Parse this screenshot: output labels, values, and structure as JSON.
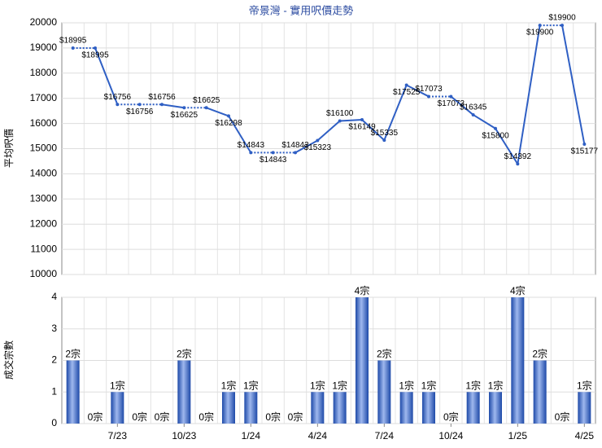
{
  "chart_data": [
    {
      "type": "line",
      "title": "帝景灣 - 實用呎價走勢",
      "y_label": "平均呎價",
      "color": "#2f5fc4",
      "values": [
        18995,
        18995,
        16756,
        16756,
        16756,
        16625,
        16625,
        16298,
        14843,
        14843,
        14843,
        15323,
        16100,
        16149,
        15335,
        17525,
        17073,
        17073,
        16345,
        15800,
        14392,
        19900,
        19900,
        15177
      ],
      "value_labels": [
        "$18995",
        "$18995",
        "$16756",
        "$16756",
        "$16756",
        "$16625",
        "$16625",
        "$16298",
        "$14843",
        "$14843",
        "$14843",
        "$15323",
        "$16100",
        "$16149",
        "$15335",
        "$17525",
        "$17073",
        "$17073",
        "$16345",
        "$15800",
        "$14392",
        "$19900",
        "$19900",
        "$15177"
      ],
      "ylim": [
        10000,
        20000
      ],
      "yticks": [
        10000,
        11000,
        12000,
        13000,
        14000,
        15000,
        16000,
        17000,
        18000,
        19000,
        20000
      ],
      "grid": true
    },
    {
      "type": "bar",
      "y_label": "成交宗數",
      "color": "#3d6fd0",
      "categories": [
        null,
        null,
        "7/23",
        null,
        null,
        "10/23",
        null,
        null,
        "1/24",
        null,
        null,
        "4/24",
        null,
        null,
        "7/24",
        null,
        null,
        "10/24",
        null,
        null,
        "1/25",
        null,
        null,
        "4/25"
      ],
      "values": [
        2,
        0,
        1,
        0,
        0,
        2,
        0,
        1,
        1,
        0,
        0,
        1,
        1,
        4,
        2,
        1,
        1,
        0,
        1,
        1,
        4,
        2,
        0,
        1
      ],
      "value_labels": [
        "2宗",
        "0宗",
        "1宗",
        "0宗",
        "0宗",
        "2宗",
        "0宗",
        "1宗",
        "1宗",
        "0宗",
        "0宗",
        "1宗",
        "1宗",
        "4宗",
        "2宗",
        "1宗",
        "1宗",
        "0宗",
        "1宗",
        "1宗",
        "4宗",
        "2宗",
        "0宗",
        "1宗"
      ],
      "ylim": [
        0,
        4
      ],
      "yticks": [
        0,
        1,
        2,
        3,
        4
      ],
      "grid": true
    }
  ]
}
